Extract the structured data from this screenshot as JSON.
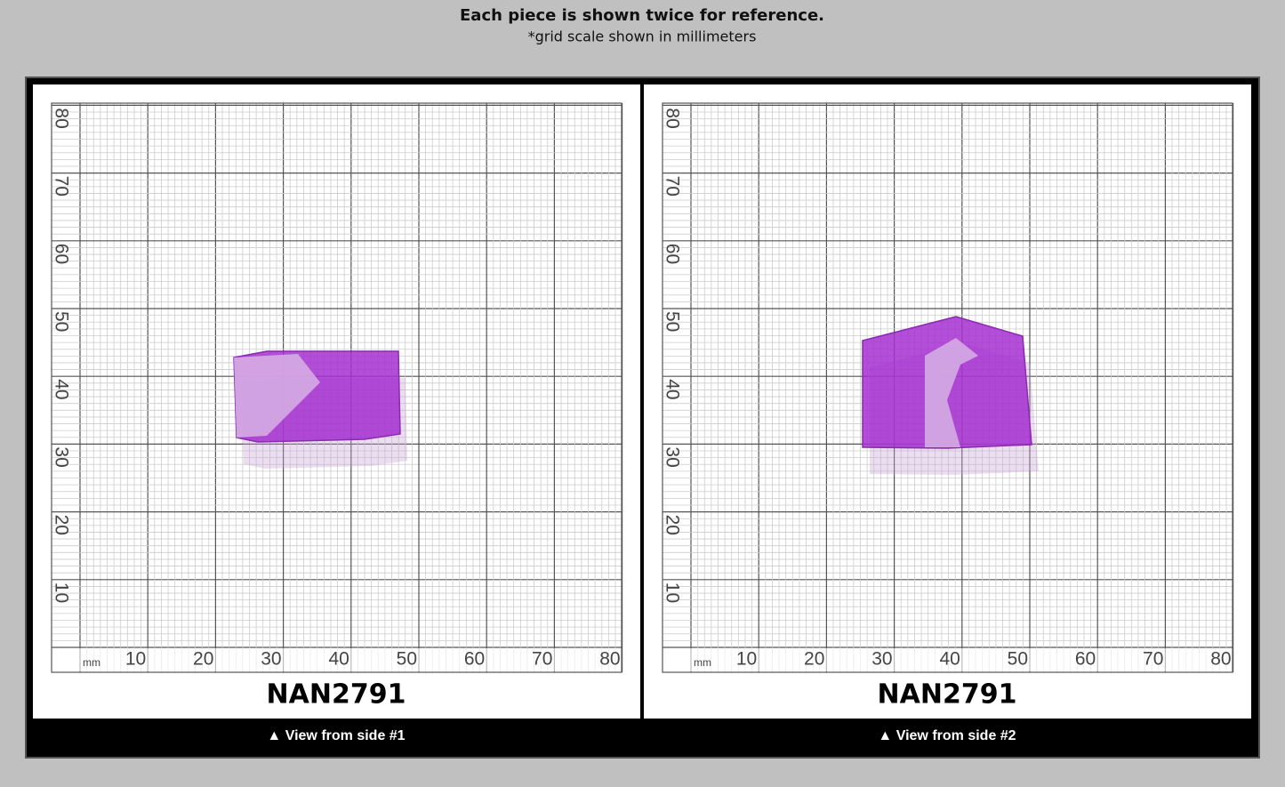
{
  "header": {
    "title": "Each piece is shown twice for reference.",
    "subtitle": "*grid scale shown in millimeters"
  },
  "panels": [
    {
      "id": "NAN2791",
      "caption": "▲ View from side #1",
      "unit": "mm",
      "x_labels": [
        "10",
        "20",
        "30",
        "40",
        "50",
        "60",
        "70",
        "80"
      ],
      "y_labels": [
        "10",
        "20",
        "30",
        "40",
        "50",
        "60",
        "70",
        "80"
      ]
    },
    {
      "id": "NAN2791",
      "caption": "▲ View from side #2",
      "unit": "mm",
      "x_labels": [
        "10",
        "20",
        "30",
        "40",
        "50",
        "60",
        "70",
        "80"
      ],
      "y_labels": [
        "10",
        "20",
        "30",
        "40",
        "50",
        "60",
        "70",
        "80"
      ]
    }
  ]
}
